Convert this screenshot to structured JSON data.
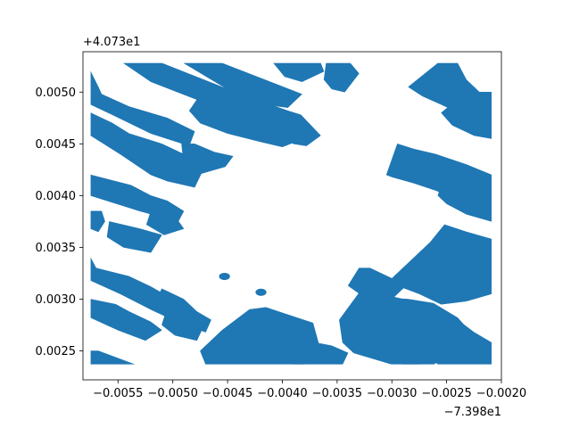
{
  "chart_data": {
    "type": "map",
    "title": "",
    "xlabel": "",
    "ylabel": "",
    "x_offset_label": "−7.398e1",
    "y_offset_label": "+4.073e1",
    "xlim": [
      -0.00582,
      -0.002
    ],
    "ylim": [
      0.00222,
      0.00539
    ],
    "x_ticks": [
      {
        "value": -0.0055,
        "label": "−0.0055"
      },
      {
        "value": -0.005,
        "label": "−0.0050"
      },
      {
        "value": -0.0045,
        "label": "−0.0045"
      },
      {
        "value": -0.004,
        "label": "−0.0040"
      },
      {
        "value": -0.0035,
        "label": "−0.0035"
      },
      {
        "value": -0.003,
        "label": "−0.0030"
      },
      {
        "value": -0.0025,
        "label": "−0.0025"
      },
      {
        "value": -0.002,
        "label": "−0.0020"
      }
    ],
    "y_ticks": [
      {
        "value": 0.0025,
        "label": "0.0025"
      },
      {
        "value": 0.003,
        "label": "0.0030"
      },
      {
        "value": 0.0035,
        "label": "0.0035"
      },
      {
        "value": 0.004,
        "label": "0.0040"
      },
      {
        "value": 0.0045,
        "label": "0.0045"
      },
      {
        "value": 0.005,
        "label": "0.0050"
      }
    ],
    "grid": false,
    "legend": "none",
    "fill_color": "#1f77b4",
    "background": "#ffffff",
    "frame_color": "#000000",
    "clip_window": {
      "x": [
        -0.00575,
        -0.00209
      ],
      "y": [
        0.00237,
        0.00528
      ]
    },
    "buildings": [
      {
        "name": "block-top-center-left",
        "points": [
          [
            -0.00545,
            0.00528
          ],
          [
            -0.0051,
            0.00528
          ],
          [
            -0.004,
            0.00482
          ],
          [
            -0.00418,
            0.00468
          ],
          [
            -0.0052,
            0.0051
          ]
        ]
      },
      {
        "name": "block-top-center-right",
        "points": [
          [
            -0.0049,
            0.00528
          ],
          [
            -0.00455,
            0.00528
          ],
          [
            -0.00382,
            0.00498
          ],
          [
            -0.00395,
            0.00485
          ],
          [
            -0.0043,
            0.0049
          ]
        ]
      },
      {
        "name": "block-top-center-main",
        "points": [
          [
            -0.00475,
            0.00512
          ],
          [
            -0.00395,
            0.00482
          ],
          [
            -0.00383,
            0.00478
          ],
          [
            -0.00365,
            0.00458
          ],
          [
            -0.00378,
            0.00448
          ],
          [
            -0.0039,
            0.0045
          ],
          [
            -0.00405,
            0.00462
          ],
          [
            -0.0042,
            0.00466
          ],
          [
            -0.00452,
            0.00478
          ],
          [
            -0.0047,
            0.0049
          ],
          [
            -0.0048,
            0.005
          ]
        ]
      },
      {
        "name": "block-top-center-lower",
        "points": [
          [
            -0.0047,
            0.00505
          ],
          [
            -0.00462,
            0.00505
          ],
          [
            -0.0042,
            0.00486
          ],
          [
            -0.00392,
            0.00476
          ],
          [
            -0.00388,
            0.00452
          ],
          [
            -0.004,
            0.00447
          ],
          [
            -0.0042,
            0.00452
          ],
          [
            -0.0045,
            0.0046
          ],
          [
            -0.00475,
            0.0047
          ],
          [
            -0.00485,
            0.00482
          ]
        ]
      },
      {
        "name": "block-top-strip-right",
        "points": [
          [
            -0.00408,
            0.00528
          ],
          [
            -0.00365,
            0.00528
          ],
          [
            -0.00362,
            0.0052
          ],
          [
            -0.00382,
            0.0051
          ],
          [
            -0.00398,
            0.00515
          ]
        ]
      },
      {
        "name": "block-top-small-right",
        "points": [
          [
            -0.0036,
            0.00528
          ],
          [
            -0.00338,
            0.00528
          ],
          [
            -0.0033,
            0.00518
          ],
          [
            -0.00343,
            0.005
          ],
          [
            -0.00355,
            0.00503
          ],
          [
            -0.00362,
            0.00512
          ]
        ]
      },
      {
        "name": "block-left-top",
        "points": [
          [
            -0.00575,
            0.0052
          ],
          [
            -0.00568,
            0.00505
          ],
          [
            -0.00565,
            0.00498
          ],
          [
            -0.0054,
            0.00486
          ],
          [
            -0.00505,
            0.00475
          ],
          [
            -0.0048,
            0.00462
          ],
          [
            -0.00485,
            0.00448
          ],
          [
            -0.0052,
            0.0046
          ],
          [
            -0.00555,
            0.00478
          ],
          [
            -0.00575,
            0.00488
          ]
        ]
      },
      {
        "name": "block-left-middle",
        "points": [
          [
            -0.00575,
            0.0048
          ],
          [
            -0.00555,
            0.0047
          ],
          [
            -0.0054,
            0.0046
          ],
          [
            -0.0051,
            0.0045
          ],
          [
            -0.0049,
            0.0044
          ],
          [
            -0.0047,
            0.0043
          ],
          [
            -0.0048,
            0.00408
          ],
          [
            -0.00505,
            0.00414
          ],
          [
            -0.0052,
            0.0042
          ],
          [
            -0.00548,
            0.0044
          ],
          [
            -0.00575,
            0.00458
          ]
        ]
      },
      {
        "name": "block-left-middle-right",
        "points": [
          [
            -0.00492,
            0.0045
          ],
          [
            -0.0048,
            0.0045
          ],
          [
            -0.00462,
            0.00442
          ],
          [
            -0.00445,
            0.00438
          ],
          [
            -0.00452,
            0.00428
          ],
          [
            -0.00478,
            0.0042
          ],
          [
            -0.0049,
            0.0043
          ]
        ]
      },
      {
        "name": "block-left-west",
        "points": [
          [
            -0.00575,
            0.0042
          ],
          [
            -0.00538,
            0.0041
          ],
          [
            -0.0052,
            0.004
          ],
          [
            -0.00505,
            0.00395
          ],
          [
            -0.0049,
            0.00385
          ],
          [
            -0.00495,
            0.00375
          ],
          [
            -0.0053,
            0.00385
          ],
          [
            -0.00575,
            0.004
          ]
        ]
      },
      {
        "name": "block-left-stub",
        "points": [
          [
            -0.00575,
            0.00385
          ],
          [
            -0.00565,
            0.00385
          ],
          [
            -0.00562,
            0.00375
          ],
          [
            -0.00568,
            0.00365
          ],
          [
            -0.00575,
            0.00368
          ]
        ]
      },
      {
        "name": "block-left-southwest",
        "points": [
          [
            -0.00558,
            0.00375
          ],
          [
            -0.0053,
            0.00368
          ],
          [
            -0.0051,
            0.00362
          ],
          [
            -0.0052,
            0.00345
          ],
          [
            -0.00545,
            0.0035
          ],
          [
            -0.0056,
            0.0036
          ]
        ]
      },
      {
        "name": "block-left-mid-lower",
        "points": [
          [
            -0.0052,
            0.00385
          ],
          [
            -0.00498,
            0.0038
          ],
          [
            -0.0049,
            0.00368
          ],
          [
            -0.00508,
            0.00362
          ],
          [
            -0.00524,
            0.00372
          ]
        ]
      },
      {
        "name": "block-left-lower",
        "points": [
          [
            -0.00575,
            0.0034
          ],
          [
            -0.0057,
            0.0033
          ],
          [
            -0.0054,
            0.00322
          ],
          [
            -0.0052,
            0.00312
          ],
          [
            -0.005,
            0.003
          ],
          [
            -0.0049,
            0.00295
          ],
          [
            -0.005,
            0.0028
          ],
          [
            -0.0052,
            0.0029
          ],
          [
            -0.00548,
            0.00305
          ],
          [
            -0.00575,
            0.00318
          ]
        ]
      },
      {
        "name": "block-left-lower-right",
        "points": [
          [
            -0.0051,
            0.0031
          ],
          [
            -0.0049,
            0.003
          ],
          [
            -0.00478,
            0.00288
          ],
          [
            -0.00465,
            0.0028
          ],
          [
            -0.0047,
            0.00268
          ],
          [
            -0.00495,
            0.00278
          ],
          [
            -0.0052,
            0.0029
          ]
        ]
      },
      {
        "name": "block-left-bottom",
        "points": [
          [
            -0.00575,
            0.003
          ],
          [
            -0.00552,
            0.00295
          ],
          [
            -0.0054,
            0.00288
          ],
          [
            -0.0052,
            0.00278
          ],
          [
            -0.0051,
            0.0027
          ],
          [
            -0.00525,
            0.0026
          ],
          [
            -0.0055,
            0.0027
          ],
          [
            -0.00575,
            0.00282
          ]
        ]
      },
      {
        "name": "block-left-bottom-right",
        "points": [
          [
            -0.00505,
            0.00292
          ],
          [
            -0.0048,
            0.00285
          ],
          [
            -0.0047,
            0.00278
          ],
          [
            -0.00478,
            0.0026
          ],
          [
            -0.00498,
            0.00265
          ],
          [
            -0.0051,
            0.00275
          ]
        ]
      },
      {
        "name": "block-bottom-left-corner",
        "points": [
          [
            -0.00575,
            0.0025
          ],
          [
            -0.00568,
            0.0025
          ],
          [
            -0.00535,
            0.00237
          ],
          [
            -0.00575,
            0.00237
          ]
        ]
      },
      {
        "name": "block-bottom-center",
        "points": [
          [
            -0.00475,
            0.0025
          ],
          [
            -0.00455,
            0.0027
          ],
          [
            -0.0043,
            0.0029
          ],
          [
            -0.00415,
            0.00292
          ],
          [
            -0.00395,
            0.00285
          ],
          [
            -0.00372,
            0.00277
          ],
          [
            -0.00365,
            0.0025
          ],
          [
            -0.0038,
            0.00237
          ],
          [
            -0.0047,
            0.00237
          ]
        ]
      },
      {
        "name": "block-bottom-center-right",
        "points": [
          [
            -0.0039,
            0.00262
          ],
          [
            -0.00355,
            0.00255
          ],
          [
            -0.0034,
            0.00248
          ],
          [
            -0.00345,
            0.00237
          ],
          [
            -0.0039,
            0.00237
          ]
        ]
      },
      {
        "name": "block-center-right",
        "points": [
          [
            -0.00305,
            0.0042
          ],
          [
            -0.00295,
            0.0045
          ],
          [
            -0.0028,
            0.00445
          ],
          [
            -0.0026,
            0.0044
          ],
          [
            -0.00232,
            0.0043
          ],
          [
            -0.00209,
            0.0042
          ],
          [
            -0.00209,
            0.00385
          ],
          [
            -0.0023,
            0.00392
          ],
          [
            -0.0026,
            0.00405
          ],
          [
            -0.0028,
            0.00412
          ],
          [
            -0.003,
            0.00418
          ]
        ]
      },
      {
        "name": "block-right-top",
        "points": [
          [
            -0.00258,
            0.00528
          ],
          [
            -0.0024,
            0.00528
          ],
          [
            -0.00232,
            0.00512
          ],
          [
            -0.0022,
            0.005
          ],
          [
            -0.00209,
            0.005
          ],
          [
            -0.00209,
            0.00468
          ],
          [
            -0.00235,
            0.00478
          ],
          [
            -0.00255,
            0.00488
          ],
          [
            -0.00272,
            0.00496
          ],
          [
            -0.00285,
            0.00505
          ]
        ]
      },
      {
        "name": "block-right-upper",
        "points": [
          [
            -0.00232,
            0.005
          ],
          [
            -0.00218,
            0.00497
          ],
          [
            -0.00209,
            0.00498
          ],
          [
            -0.00209,
            0.00455
          ],
          [
            -0.00225,
            0.00458
          ],
          [
            -0.00245,
            0.00468
          ],
          [
            -0.00255,
            0.0048
          ]
        ]
      },
      {
        "name": "block-right-middle",
        "points": [
          [
            -0.00255,
            0.0041
          ],
          [
            -0.00238,
            0.00405
          ],
          [
            -0.00225,
            0.004
          ],
          [
            -0.00209,
            0.00392
          ],
          [
            -0.00209,
            0.00375
          ],
          [
            -0.00232,
            0.00382
          ],
          [
            -0.0025,
            0.00392
          ],
          [
            -0.00258,
            0.004
          ]
        ]
      },
      {
        "name": "block-right-big",
        "points": [
          [
            -0.003,
            0.0032
          ],
          [
            -0.00265,
            0.00355
          ],
          [
            -0.00252,
            0.00372
          ],
          [
            -0.00232,
            0.00365
          ],
          [
            -0.00209,
            0.00358
          ],
          [
            -0.00209,
            0.00305
          ],
          [
            -0.00232,
            0.00298
          ],
          [
            -0.00255,
            0.00295
          ],
          [
            -0.00275,
            0.00305
          ],
          [
            -0.003,
            0.00315
          ]
        ]
      },
      {
        "name": "block-right-big-lower",
        "points": [
          [
            -0.0032,
            0.00302
          ],
          [
            -0.00285,
            0.003
          ],
          [
            -0.00262,
            0.00296
          ],
          [
            -0.0024,
            0.00282
          ],
          [
            -0.00228,
            0.00268
          ],
          [
            -0.0024,
            0.0025
          ],
          [
            -0.00262,
            0.00237
          ],
          [
            -0.0029,
            0.00237
          ],
          [
            -0.00312,
            0.00248
          ],
          [
            -0.00325,
            0.00262
          ],
          [
            -0.00328,
            0.00282
          ]
        ]
      },
      {
        "name": "block-right-bottom",
        "points": [
          [
            -0.00262,
            0.0029
          ],
          [
            -0.0024,
            0.0028
          ],
          [
            -0.00225,
            0.00268
          ],
          [
            -0.00209,
            0.00258
          ],
          [
            -0.00209,
            0.00237
          ],
          [
            -0.00258,
            0.00237
          ],
          [
            -0.0027,
            0.0025
          ],
          [
            -0.00275,
            0.0027
          ]
        ]
      },
      {
        "name": "block-bottom-right-main",
        "points": [
          [
            -0.0033,
            0.00306
          ],
          [
            -0.0032,
            0.0031
          ],
          [
            -0.00298,
            0.00302
          ],
          [
            -0.0027,
            0.00295
          ],
          [
            -0.0025,
            0.00283
          ],
          [
            -0.0024,
            0.0027
          ],
          [
            -0.00238,
            0.00255
          ],
          [
            -0.0025,
            0.00244
          ],
          [
            -0.00275,
            0.00237
          ],
          [
            -0.003,
            0.00237
          ],
          [
            -0.00335,
            0.00248
          ],
          [
            -0.00345,
            0.00258
          ],
          [
            -0.00348,
            0.0028
          ]
        ]
      },
      {
        "name": "block-bottom-right-west",
        "points": [
          [
            -0.0033,
            0.0033
          ],
          [
            -0.0032,
            0.0033
          ],
          [
            -0.003,
            0.0032
          ],
          [
            -0.00285,
            0.00315
          ],
          [
            -0.00298,
            0.00302
          ],
          [
            -0.00315,
            0.00297
          ],
          [
            -0.00328,
            0.00304
          ],
          [
            -0.0034,
            0.00313
          ]
        ]
      }
    ],
    "markers": [
      {
        "name": "marker-round-west",
        "x": -0.004528,
        "y": 0.003219,
        "rx": 5e-05,
        "ry": 3.5e-05
      },
      {
        "name": "marker-round-east",
        "x": -0.004195,
        "y": 0.003066,
        "rx": 5e-05,
        "ry": 3.5e-05
      }
    ]
  }
}
